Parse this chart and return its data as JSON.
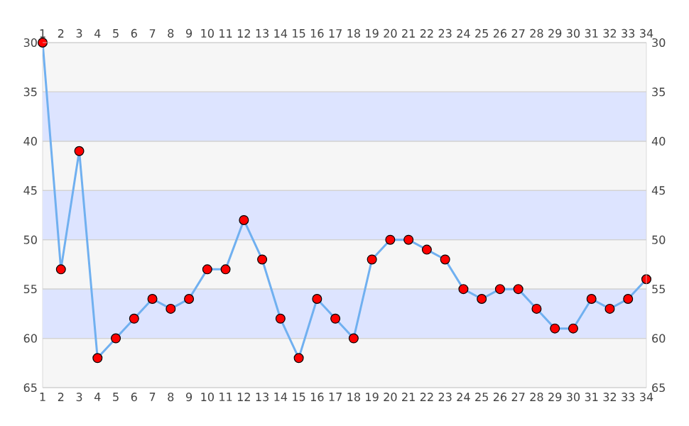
{
  "chart_data": {
    "type": "line",
    "x": [
      1,
      2,
      3,
      4,
      5,
      6,
      7,
      8,
      9,
      10,
      11,
      12,
      13,
      14,
      15,
      16,
      17,
      18,
      19,
      20,
      21,
      22,
      23,
      24,
      25,
      26,
      27,
      28,
      29,
      30,
      31,
      32,
      33,
      34
    ],
    "series": [
      {
        "color": "#70b0f0",
        "colors": [
          "#ff0000",
          "#ff0000",
          "#ff0000",
          "#ff0000",
          "#ff0000",
          "#ff0000",
          "#ff0000",
          "#ff0000",
          "#ff0000",
          "#ff0000",
          "#ff0000",
          "#ff0000",
          "#ff0000",
          "#ff0000",
          "#ff0000",
          "#ff0000",
          "#ff0000",
          "#ff0000",
          "#ff0000",
          "#ff0000",
          "#ff0000",
          "#ff0000",
          "#ff0000",
          "#ff0000",
          "#ff0000",
          "#ff0000",
          "#ff0000",
          "#ff0000",
          "#ff0000",
          "#ff0000",
          "#ff0000",
          "#ff0000",
          "#ff0000",
          "#ff0000"
        ],
        "values": [
          30,
          53,
          41,
          62,
          60,
          58,
          56,
          57,
          56,
          53,
          53,
          48,
          52,
          58,
          62,
          56,
          58,
          60,
          52,
          50,
          50,
          51,
          52,
          55,
          56,
          55,
          55,
          57,
          59,
          59,
          56,
          57,
          56,
          54
        ]
      }
    ],
    "xlim": [
      1,
      34
    ],
    "xticks": [
      1,
      2,
      3,
      4,
      5,
      6,
      7,
      8,
      9,
      10,
      11,
      12,
      13,
      14,
      15,
      16,
      17,
      18,
      19,
      20,
      21,
      22,
      23,
      24,
      25,
      26,
      27,
      28,
      29,
      30,
      31,
      32,
      33,
      34
    ],
    "x2lim": [
      1,
      34
    ],
    "x2ticks": [
      1,
      2,
      3,
      4,
      5,
      6,
      7,
      8,
      9,
      10,
      11,
      12,
      13,
      14,
      15,
      16,
      17,
      18,
      19,
      20,
      21,
      22,
      23,
      24,
      25,
      26,
      27,
      28,
      29,
      30,
      31,
      32,
      33,
      34
    ],
    "ylim": [
      65,
      30
    ],
    "yticks": [
      30,
      35,
      40,
      45,
      50,
      55,
      60,
      65
    ],
    "y2lim": [
      65,
      30
    ],
    "y2ticks": [
      30,
      35,
      40,
      45,
      50,
      55,
      60,
      65
    ],
    "bands": [
      {
        "axis": "y",
        "from": 35,
        "to": 40,
        "color": "#dde4ff"
      },
      {
        "axis": "y",
        "from": 45,
        "to": 50,
        "color": "#dde4ff"
      },
      {
        "axis": "y",
        "from": 55,
        "to": 60,
        "color": "#dde4ff"
      }
    ],
    "grid": "y",
    "marker": "circle",
    "line_style": "solid"
  }
}
